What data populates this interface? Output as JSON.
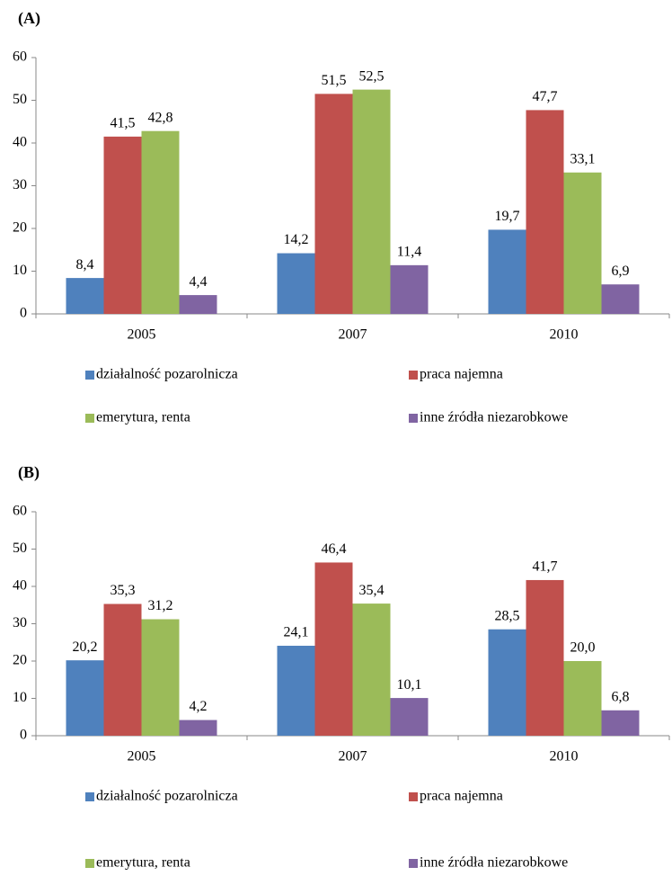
{
  "chart_data": [
    {
      "type": "bar",
      "title": "(A)",
      "categories": [
        "2005",
        "2007",
        "2010"
      ],
      "series": [
        {
          "name": "działalność pozarolnicza",
          "color": "#4f81bd",
          "values": [
            8.4,
            14.2,
            19.7
          ],
          "value_labels": [
            "8,4",
            "14,2",
            "19,7"
          ]
        },
        {
          "name": "praca najemna",
          "color": "#c0504d",
          "values": [
            41.5,
            51.5,
            47.7
          ],
          "value_labels": [
            "41,5",
            "51,5",
            "47,7"
          ]
        },
        {
          "name": "emerytura, renta",
          "color": "#9bbb59",
          "values": [
            42.8,
            52.5,
            33.1
          ],
          "value_labels": [
            "42,8",
            "52,5",
            "33,1"
          ]
        },
        {
          "name": "inne źródła niezarobkowe",
          "color": "#8064a2",
          "values": [
            4.4,
            11.4,
            6.9
          ],
          "value_labels": [
            "4,4",
            "11,4",
            "6,9"
          ]
        }
      ],
      "ylim": [
        0,
        60
      ],
      "yticks": [
        0,
        10,
        20,
        30,
        40,
        50,
        60
      ]
    },
    {
      "type": "bar",
      "title": "(B)",
      "categories": [
        "2005",
        "2007",
        "2010"
      ],
      "series": [
        {
          "name": "działalność pozarolnicza",
          "color": "#4f81bd",
          "values": [
            20.2,
            24.1,
            28.5
          ],
          "value_labels": [
            "20,2",
            "24,1",
            "28,5"
          ]
        },
        {
          "name": "praca najemna",
          "color": "#c0504d",
          "values": [
            35.3,
            46.4,
            41.7
          ],
          "value_labels": [
            "35,3",
            "46,4",
            "41,7"
          ]
        },
        {
          "name": "emerytura, renta",
          "color": "#9bbb59",
          "values": [
            31.2,
            35.4,
            20.0
          ],
          "value_labels": [
            "31,2",
            "35,4",
            "20,0"
          ]
        },
        {
          "name": "inne źródła niezarobkowe",
          "color": "#8064a2",
          "values": [
            4.2,
            10.1,
            6.8
          ],
          "value_labels": [
            "4,2",
            "10,1",
            "6,8"
          ]
        }
      ],
      "ylim": [
        0,
        60
      ],
      "yticks": [
        0,
        10,
        20,
        30,
        40,
        50,
        60
      ]
    }
  ]
}
